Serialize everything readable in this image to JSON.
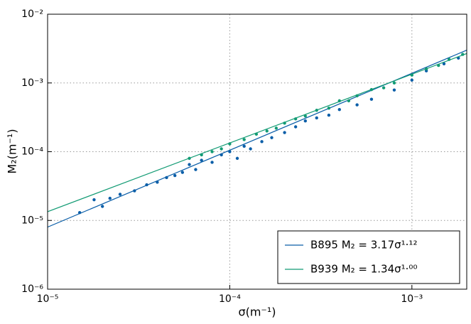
{
  "chart_data": {
    "type": "scatter",
    "x_label": "σ(m⁻¹)",
    "y_label": "M₂(m⁻¹)",
    "xlog": true,
    "ylog": true,
    "grid": true,
    "legend": "lower right",
    "xlim": [
      1e-05,
      0.002
    ],
    "ylim": [
      1e-06,
      0.01
    ],
    "xticks": [
      {
        "value": 1e-05,
        "label": "10⁻⁵"
      },
      {
        "value": 0.0001,
        "label": "10⁻⁴"
      },
      {
        "value": 0.001,
        "label": "10⁻³"
      }
    ],
    "yticks": [
      {
        "value": 1e-06,
        "label": "10⁻⁶"
      },
      {
        "value": 1e-05,
        "label": "10⁻⁵"
      },
      {
        "value": 0.0001,
        "label": "10⁻⁴"
      },
      {
        "value": 0.001,
        "label": "10⁻³"
      },
      {
        "value": 0.01,
        "label": "10⁻²"
      }
    ],
    "series": [
      {
        "name": "B895 M₂ = 3.17σ¹·¹²",
        "color": "#0a5ea8",
        "x": [
          1.5e-05,
          1.8e-05,
          2e-05,
          2.2e-05,
          2.5e-05,
          3e-05,
          3.5e-05,
          4e-05,
          4.5e-05,
          5e-05,
          5.5e-05,
          6e-05,
          6.5e-05,
          7e-05,
          8e-05,
          9e-05,
          0.0001,
          0.00011,
          0.00012,
          0.00013,
          0.00015,
          0.00017,
          0.0002,
          0.00023,
          0.00026,
          0.0003,
          0.00035,
          0.0004,
          0.0005,
          0.0006,
          0.0008,
          0.001,
          0.0012,
          0.0015,
          0.0018
        ],
        "values": [
          1.3e-05,
          2e-05,
          1.6e-05,
          2.1e-05,
          2.4e-05,
          2.7e-05,
          3.3e-05,
          3.6e-05,
          4.2e-05,
          4.5e-05,
          5e-05,
          6.5e-05,
          5.5e-05,
          7.5e-05,
          7e-05,
          9e-05,
          0.0001,
          8e-05,
          0.00012,
          0.00011,
          0.00014,
          0.00016,
          0.00019,
          0.00023,
          0.00028,
          0.00031,
          0.00034,
          0.00041,
          0.00048,
          0.00058,
          0.00079,
          0.0011,
          0.0015,
          0.0019,
          0.0023
        ],
        "fit": {
          "x": [
            1e-05,
            0.002
          ],
          "values": [
            8e-06,
            0.003
          ]
        }
      },
      {
        "name": "B939 M₂ = 1.34σ¹·⁰⁰",
        "color": "#129b74",
        "x": [
          6e-05,
          7e-05,
          8e-05,
          9e-05,
          0.0001,
          0.00012,
          0.00014,
          0.00016,
          0.00018,
          0.0002,
          0.00023,
          0.00026,
          0.0003,
          0.00035,
          0.0004,
          0.00045,
          0.0005,
          0.0006,
          0.0007,
          0.0008,
          0.001,
          0.0012,
          0.0014,
          0.0016,
          0.0019
        ],
        "values": [
          8e-05,
          9e-05,
          0.0001,
          0.00011,
          0.00013,
          0.00015,
          0.00018,
          0.0002,
          0.00022,
          0.00026,
          0.0003,
          0.00033,
          0.0004,
          0.00043,
          0.00055,
          0.00055,
          0.00065,
          0.0008,
          0.00085,
          0.001,
          0.0013,
          0.0016,
          0.0018,
          0.0022,
          0.0026
        ],
        "fit": {
          "x": [
            1e-05,
            0.002
          ],
          "values": [
            1.34e-05,
            0.00268
          ]
        }
      }
    ]
  }
}
